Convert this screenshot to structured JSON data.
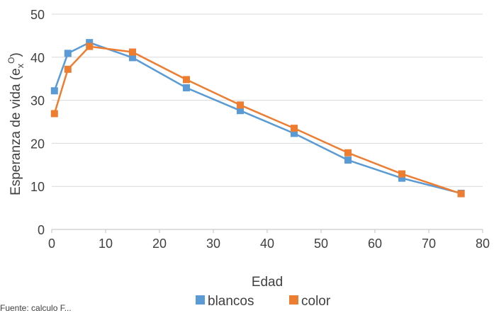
{
  "chart_data": {
    "type": "line",
    "title": "",
    "xlabel": "Edad",
    "ylabel": "Esperanza de vida (e",
    "ylabel_sub": "x",
    "ylabel_sup": "O",
    "ylabel_close": ")",
    "xlim": [
      0,
      80
    ],
    "ylim": [
      0,
      50
    ],
    "xticks": [
      0,
      10,
      20,
      30,
      40,
      50,
      60,
      70,
      80
    ],
    "yticks": [
      0,
      10,
      20,
      30,
      40,
      50
    ],
    "grid": "horizontal",
    "legend_position": "bottom",
    "series": [
      {
        "name": "blancos",
        "color": "#5B9BD5",
        "x": [
          0.5,
          3,
          7,
          15,
          25,
          35,
          45,
          55,
          65,
          76
        ],
        "y": [
          32.2,
          40.9,
          43.4,
          39.9,
          32.9,
          27.6,
          22.3,
          16.1,
          11.9,
          8.4
        ]
      },
      {
        "name": "color",
        "color": "#ED7D31",
        "x": [
          0.5,
          3,
          7,
          15,
          25,
          35,
          45,
          55,
          65,
          76
        ],
        "y": [
          26.9,
          37.2,
          42.5,
          41.2,
          34.8,
          28.9,
          23.5,
          17.8,
          12.9,
          8.3
        ]
      }
    ]
  },
  "footer_fragment": "Fuente: calculo F..."
}
